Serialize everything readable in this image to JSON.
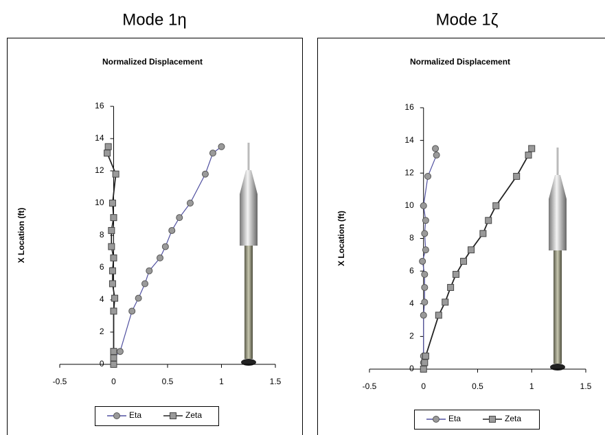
{
  "chart_data": [
    {
      "type": "line",
      "heading": "Mode 1η",
      "title": "Normalized Displacement",
      "ylabel": "X Location (ft)",
      "xlim": [
        -0.5,
        1.5
      ],
      "xticks": [
        -0.5,
        0,
        0.5,
        1,
        1.5
      ],
      "ylim": [
        0,
        16
      ],
      "yticks": [
        0,
        2,
        4,
        6,
        8,
        10,
        12,
        14,
        16
      ],
      "legend": "bottom",
      "series": [
        {
          "name": "Eta",
          "color": "#4f4f9f",
          "marker": "circle",
          "x": [
            0,
            0,
            0.06,
            0.17,
            0.23,
            0.29,
            0.33,
            0.43,
            0.48,
            0.54,
            0.61,
            0.71,
            0.85,
            0.92,
            1.0
          ],
          "values": [
            0,
            0.4,
            0.8,
            3.3,
            4.1,
            5.0,
            5.8,
            6.6,
            7.3,
            8.3,
            9.1,
            10.0,
            11.8,
            13.1,
            13.5
          ]
        },
        {
          "name": "Zeta",
          "color": "#222222",
          "marker": "square",
          "x": [
            0,
            0,
            0,
            0,
            0.01,
            -0.01,
            -0.01,
            0,
            -0.02,
            -0.02,
            0,
            -0.01,
            0.02,
            -0.06,
            -0.05
          ],
          "values": [
            0,
            0.4,
            0.8,
            3.3,
            4.1,
            5.0,
            5.8,
            6.6,
            7.3,
            8.3,
            9.1,
            10.0,
            11.8,
            13.1,
            13.5
          ]
        }
      ]
    },
    {
      "type": "line",
      "heading": "Mode 1ζ",
      "title": "Normalized Displacement",
      "ylabel": "X Location (ft)",
      "xlim": [
        -0.5,
        1.5
      ],
      "xticks": [
        -0.5,
        0,
        0.5,
        1,
        1.5
      ],
      "ylim": [
        0,
        16
      ],
      "yticks": [
        0,
        2,
        4,
        6,
        8,
        10,
        12,
        14,
        16
      ],
      "legend": "bottom",
      "series": [
        {
          "name": "Eta",
          "color": "#4f4f9f",
          "marker": "circle",
          "x": [
            0,
            0,
            0,
            0,
            0.01,
            0.01,
            0.01,
            -0.01,
            0.02,
            0.01,
            0.02,
            0,
            0.04,
            0.12,
            0.11
          ],
          "values": [
            0,
            0.4,
            0.8,
            3.3,
            4.1,
            5.0,
            5.8,
            6.6,
            7.3,
            8.3,
            9.1,
            10.0,
            11.8,
            13.1,
            13.5
          ]
        },
        {
          "name": "Zeta",
          "color": "#222222",
          "marker": "square",
          "x": [
            0,
            0.01,
            0.02,
            0.14,
            0.2,
            0.25,
            0.3,
            0.37,
            0.44,
            0.55,
            0.6,
            0.67,
            0.86,
            0.97,
            1.0
          ],
          "values": [
            0,
            0.4,
            0.8,
            3.3,
            4.1,
            5.0,
            5.8,
            6.6,
            7.3,
            8.3,
            9.1,
            10.0,
            11.8,
            13.1,
            13.5
          ]
        }
      ]
    }
  ]
}
